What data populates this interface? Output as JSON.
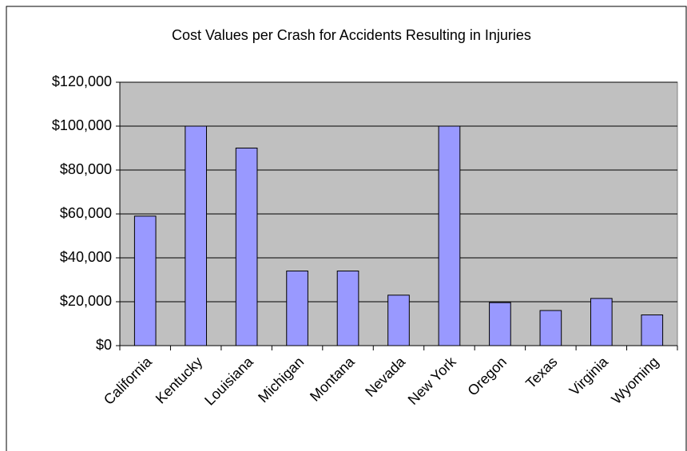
{
  "chart_data": {
    "type": "bar",
    "title": "Cost Values per Crash for Accidents Resulting in Injuries",
    "categories": [
      "California",
      "Kentucky",
      "Louisiana",
      "Michigan",
      "Montana",
      "Nevada",
      "New York",
      "Oregon",
      "Texas",
      "Virginia",
      "Wyoming"
    ],
    "values": [
      59000,
      100000,
      90000,
      34000,
      34000,
      23000,
      100000,
      19600,
      16000,
      21500,
      14000
    ],
    "color": "#9999ff",
    "ylim": [
      0,
      120000
    ],
    "yticks": [
      {
        "value": 0,
        "label": "$0"
      },
      {
        "value": 20000,
        "label": "$20,000"
      },
      {
        "value": 40000,
        "label": "$40,000"
      },
      {
        "value": 60000,
        "label": "$60,000"
      },
      {
        "value": 80000,
        "label": "$80,000"
      },
      {
        "value": 100000,
        "label": "$100,000"
      },
      {
        "value": 120000,
        "label": "$120,000"
      }
    ],
    "grid": true
  }
}
